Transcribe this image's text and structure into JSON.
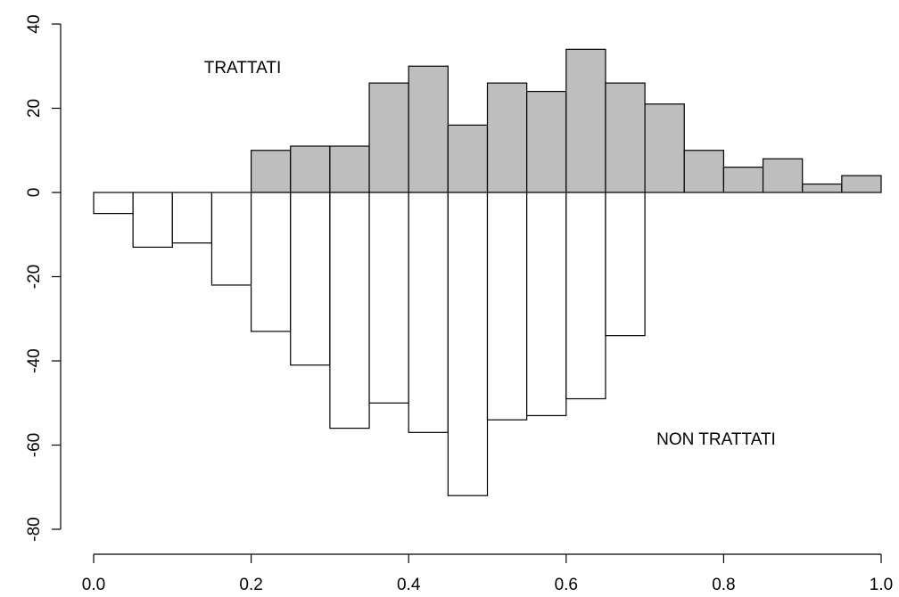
{
  "chart_data": {
    "type": "bar",
    "title": "",
    "xlabel": "",
    "ylabel": "",
    "bin_edges": [
      0.0,
      0.05,
      0.1,
      0.15,
      0.2,
      0.25,
      0.3,
      0.35,
      0.4,
      0.45,
      0.5,
      0.55,
      0.6,
      0.65,
      0.7,
      0.75,
      0.8,
      0.85,
      0.9,
      0.95,
      1.0
    ],
    "series": [
      {
        "name": "TRATTATI",
        "color": "#bebebe",
        "values": [
          0,
          0,
          0,
          0,
          10,
          11,
          11,
          26,
          30,
          16,
          26,
          24,
          34,
          26,
          21,
          10,
          6,
          8,
          2,
          4
        ]
      },
      {
        "name": "NON TRATTATI",
        "color": "#ffffff",
        "values": [
          -5,
          -13,
          -12,
          -22,
          -33,
          -41,
          -56,
          -50,
          -57,
          -72,
          -54,
          -53,
          -49,
          -34,
          0,
          0,
          0,
          0,
          0,
          0
        ]
      }
    ],
    "xlim": [
      0.0,
      1.0
    ],
    "ylim": [
      -80,
      40
    ],
    "x_ticks": [
      "0.0",
      "0.2",
      "0.4",
      "0.6",
      "0.8",
      "1.0"
    ],
    "y_ticks": [
      "-80",
      "-60",
      "-40",
      "-20",
      "0",
      "20",
      "40"
    ],
    "annotations": {
      "top": "TRATTATI",
      "bottom": "NON TRATTATI"
    },
    "grid": false,
    "legend": "none"
  }
}
